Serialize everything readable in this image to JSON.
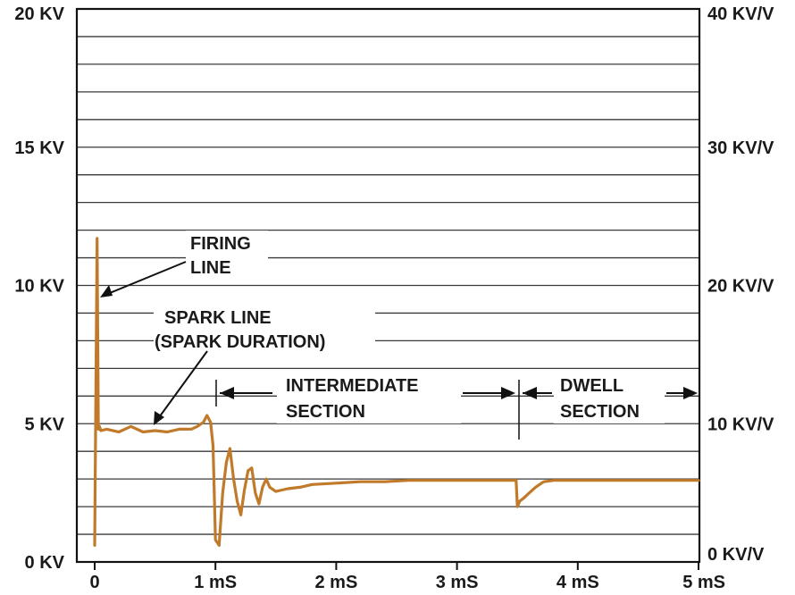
{
  "chart_data": {
    "type": "line",
    "title": "",
    "xlabel": "",
    "ylabel": "",
    "xlim": [
      0,
      5
    ],
    "ylim": [
      0,
      20
    ],
    "y2lim": [
      0,
      40
    ],
    "grid": true,
    "x_ticks": [
      "0",
      "1 mS",
      "2 mS",
      "3 mS",
      "4 mS",
      "5 mS"
    ],
    "y_ticks_left": [
      "0 KV",
      "5 KV",
      "10 KV",
      "15 KV",
      "20 KV"
    ],
    "y_ticks_right": [
      "0 KV/V",
      "10 KV/V",
      "20 KV/V",
      "30 KV/V",
      "40 KV/V"
    ],
    "series": [
      {
        "color": "#c07a2a",
        "x": [
          0.0,
          0.02,
          0.03,
          0.04,
          0.05,
          0.1,
          0.2,
          0.3,
          0.4,
          0.5,
          0.6,
          0.7,
          0.8,
          0.85,
          0.9,
          0.93,
          0.96,
          0.98,
          1.0,
          1.03,
          1.06,
          1.09,
          1.12,
          1.15,
          1.18,
          1.21,
          1.24,
          1.27,
          1.3,
          1.33,
          1.36,
          1.39,
          1.42,
          1.45,
          1.5,
          1.55,
          1.6,
          1.7,
          1.8,
          2.0,
          2.2,
          2.4,
          2.6,
          2.8,
          3.0,
          3.2,
          3.4,
          3.49,
          3.5,
          3.52,
          3.55,
          3.6,
          3.65,
          3.7,
          3.72,
          3.8,
          4.0,
          4.5,
          5.0
        ],
        "y": [
          0.6,
          11.7,
          4.8,
          4.9,
          4.75,
          4.8,
          4.7,
          4.9,
          4.7,
          4.75,
          4.7,
          4.8,
          4.8,
          4.9,
          5.05,
          5.3,
          5.05,
          4.2,
          0.8,
          0.6,
          2.5,
          3.6,
          4.1,
          3.0,
          2.2,
          1.7,
          2.6,
          3.3,
          3.4,
          2.5,
          2.1,
          2.7,
          3.0,
          2.7,
          2.55,
          2.6,
          2.65,
          2.7,
          2.8,
          2.85,
          2.9,
          2.9,
          2.95,
          2.95,
          2.95,
          2.95,
          2.95,
          2.95,
          2.0,
          2.2,
          2.3,
          2.5,
          2.7,
          2.85,
          2.9,
          2.95,
          2.95,
          2.95,
          2.95
        ]
      }
    ],
    "annotations": {
      "firing": [
        "FIRING",
        "LINE"
      ],
      "spark": [
        "SPARK LINE",
        "(SPARK DURATION)"
      ],
      "intermediate": [
        "INTERMEDIATE",
        "SECTION"
      ],
      "dwell": [
        "DWELL",
        "SECTION"
      ]
    }
  }
}
